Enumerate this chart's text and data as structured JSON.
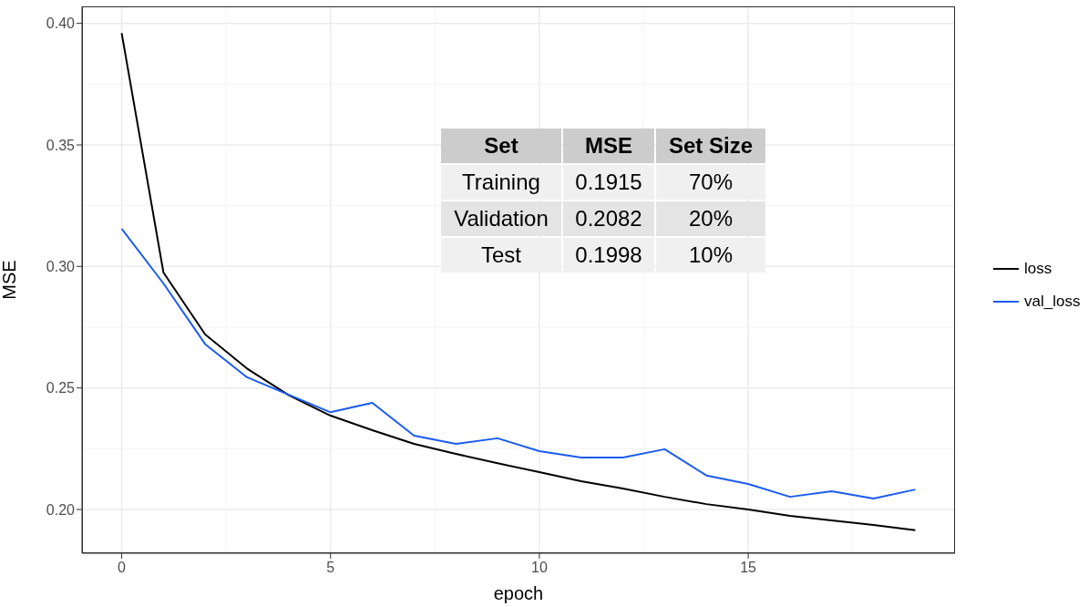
{
  "chart_data": {
    "type": "line",
    "xlabel": "epoch",
    "ylabel": "MSE",
    "x": [
      0,
      1,
      2,
      3,
      4,
      5,
      6,
      7,
      8,
      9,
      10,
      11,
      12,
      13,
      14,
      15,
      16,
      17,
      18,
      19
    ],
    "series": [
      {
        "name": "loss",
        "color": "#000000",
        "values": [
          0.396,
          0.2975,
          0.272,
          0.258,
          0.247,
          0.2386,
          0.2326,
          0.227,
          0.2229,
          0.219,
          0.2154,
          0.2116,
          0.2086,
          0.2052,
          0.2022,
          0.2,
          0.1974,
          0.1955,
          0.1936,
          0.1915
        ]
      },
      {
        "name": "val_loss",
        "color": "#1a5cf0",
        "values": [
          0.3155,
          0.293,
          0.268,
          0.2544,
          0.2472,
          0.24,
          0.2439,
          0.2304,
          0.227,
          0.2293,
          0.224,
          0.2214,
          0.2214,
          0.2248,
          0.214,
          0.2105,
          0.2052,
          0.2075,
          0.2045,
          0.2082
        ]
      }
    ],
    "xlim": [
      -0.95,
      19.95
    ],
    "xticks": [
      0,
      5,
      10,
      15
    ],
    "ylim": [
      0.182,
      0.407
    ],
    "yticks": [
      {
        "value": 0.2,
        "label": "0.20"
      },
      {
        "value": 0.25,
        "label": "0.25"
      },
      {
        "value": 0.3,
        "label": "0.30"
      },
      {
        "value": 0.35,
        "label": "0.35"
      },
      {
        "value": 0.4,
        "label": "0.40"
      }
    ],
    "grid": true,
    "legend": "right",
    "marker": "none",
    "line_style": "solid",
    "annotations": [
      "Set",
      "MSE",
      "Set Size",
      "Training",
      "0.1915",
      "70%",
      "Validation",
      "0.2082",
      "20%",
      "Test",
      "0.1998",
      "10%"
    ]
  }
}
